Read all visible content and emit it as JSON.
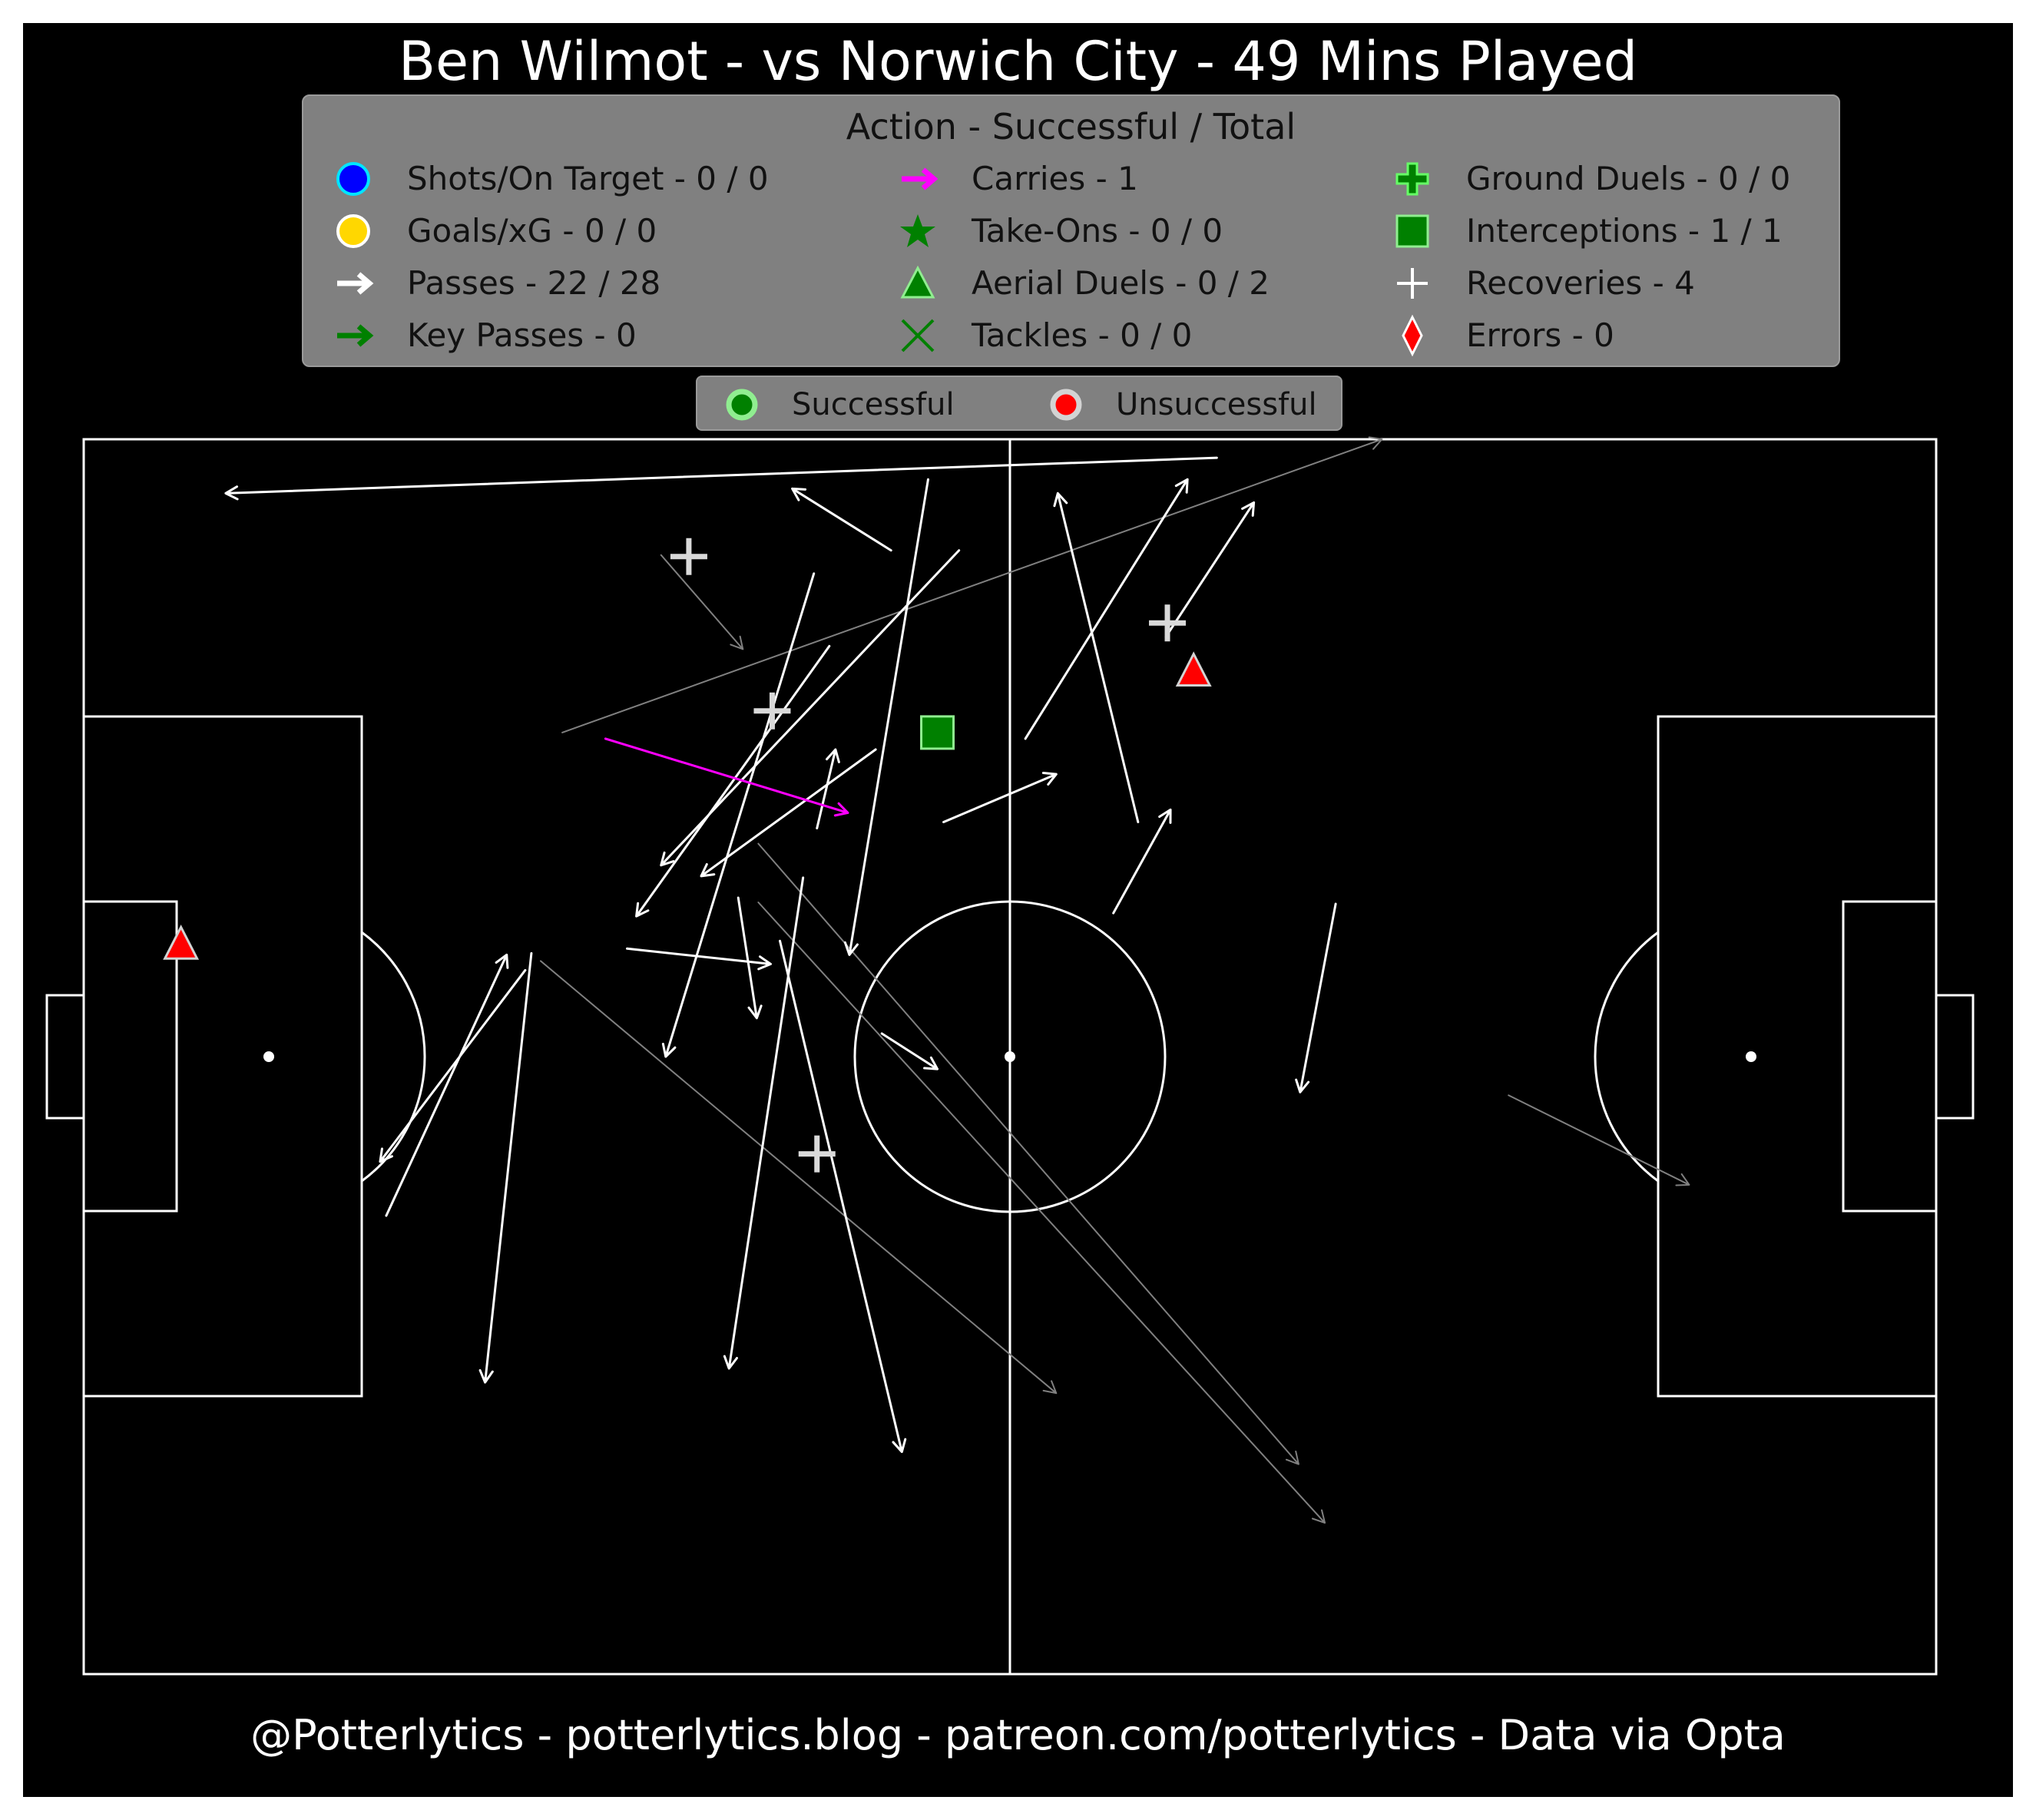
{
  "header": {
    "title": "Ben Wilmot - vs Norwich City - 49 Mins Played"
  },
  "legend": {
    "title": "Action - Successful / Total",
    "items": [
      {
        "label": "Shots/On Target - 0 / 0",
        "icon": "blue-circle-icon"
      },
      {
        "label": "Goals/xG - 0 / 0",
        "icon": "gold-circle-icon"
      },
      {
        "label": "Passes - 22 / 28",
        "icon": "white-arrow-icon"
      },
      {
        "label": "Key Passes - 0",
        "icon": "green-arrow-icon"
      },
      {
        "label": "Carries - 1",
        "icon": "magenta-arrow-icon"
      },
      {
        "label": "Take-Ons - 0 / 0",
        "icon": "green-star-icon"
      },
      {
        "label": "Aerial Duels - 0 / 2",
        "icon": "green-triangle-icon"
      },
      {
        "label": "Tackles - 0 / 0",
        "icon": "green-x-icon"
      },
      {
        "label": "Ground Duels - 0 / 0",
        "icon": "green-plus-icon"
      },
      {
        "label": "Interceptions - 1 / 1",
        "icon": "green-square-icon"
      },
      {
        "label": "Recoveries - 4",
        "icon": "white-plus-icon"
      },
      {
        "label": "Errors - 0",
        "icon": "red-diamond-icon"
      }
    ]
  },
  "status_legend": {
    "successful": "Successful",
    "unsuccessful": "Unsuccessful"
  },
  "colors": {
    "background": "#000000",
    "pitch_lines": "#ffffff",
    "pass_successful": "#ffffff",
    "pass_unsuccessful": "#808080",
    "carry": "#ff00ff",
    "successful": "#008000",
    "unsuccessful": "#ff0000",
    "legend_bg": "#808080"
  },
  "footer": {
    "credit": "@Potterlytics - potterlytics.blog - patreon.com/potterlytics - Data via Opta"
  },
  "chart_data": {
    "type": "scatter",
    "pitch": {
      "length": 120,
      "width": 80
    },
    "passes_successful": [
      [
        73.4,
        1.2,
        9.2,
        3.5
      ],
      [
        28.6,
        34.4,
        19.2,
        46.8
      ],
      [
        52.3,
        7.2,
        45.9,
        3.2
      ],
      [
        19.6,
        50.3,
        27.4,
        33.4
      ],
      [
        48.3,
        13.4,
        35.8,
        30.9
      ],
      [
        66.7,
        30.7,
        70.4,
        24.0
      ],
      [
        56.7,
        7.2,
        37.4,
        27.6
      ],
      [
        47.3,
        8.7,
        37.7,
        40.0
      ],
      [
        51.3,
        20.1,
        40.0,
        28.3
      ],
      [
        55.7,
        24.8,
        63.0,
        21.7
      ],
      [
        54.7,
        2.6,
        49.6,
        33.4
      ],
      [
        42.4,
        29.7,
        43.6,
        37.5
      ],
      [
        47.5,
        25.2,
        48.7,
        20.1
      ],
      [
        51.7,
        38.5,
        55.3,
        40.8
      ],
      [
        35.2,
        33.0,
        44.5,
        34.0
      ],
      [
        45.1,
        32.5,
        53.0,
        65.6
      ],
      [
        46.6,
        28.4,
        41.8,
        60.2
      ],
      [
        68.3,
        24.8,
        63.1,
        3.5
      ],
      [
        70.1,
        12.8,
        75.8,
        4.1
      ],
      [
        61.0,
        19.4,
        71.5,
        2.6
      ],
      [
        81.1,
        30.1,
        78.8,
        42.3
      ],
      [
        29.0,
        33.3,
        26.0,
        61.1
      ]
    ],
    "passes_unsuccessful": [
      [
        31.0,
        19.0,
        84.1,
        0.0
      ],
      [
        37.4,
        7.5,
        42.7,
        13.6
      ],
      [
        29.6,
        33.8,
        63.0,
        61.8
      ],
      [
        43.7,
        26.2,
        78.7,
        66.4
      ],
      [
        43.7,
        30.0,
        80.4,
        70.2
      ],
      [
        92.3,
        42.5,
        104.0,
        48.3
      ]
    ],
    "carries": [
      [
        33.8,
        19.4,
        49.5,
        24.2
      ]
    ],
    "recoveries": [
      [
        39.2,
        7.6
      ],
      [
        44.6,
        17.6
      ],
      [
        47.5,
        46.3
      ],
      [
        70.2,
        11.9
      ]
    ],
    "interceptions_successful": [
      [
        55.3,
        19.0
      ]
    ],
    "aerial_duels_unsuccessful": [
      [
        6.3,
        32.7
      ],
      [
        71.9,
        15.0
      ]
    ]
  }
}
